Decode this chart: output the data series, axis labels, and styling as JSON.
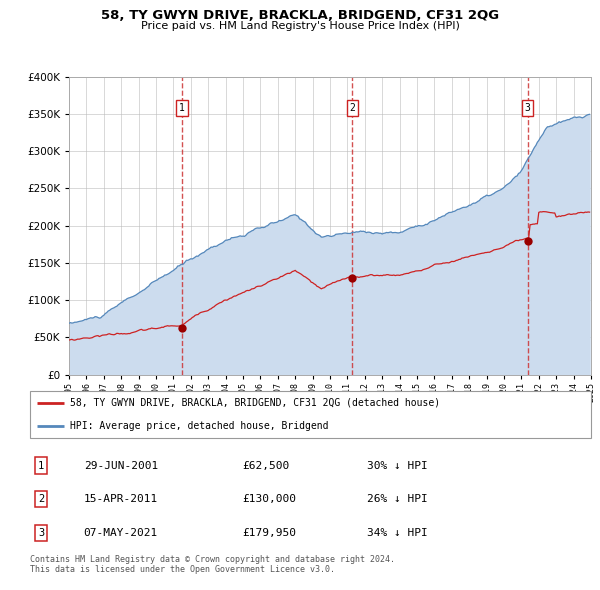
{
  "title": "58, TY GWYN DRIVE, BRACKLA, BRIDGEND, CF31 2QG",
  "subtitle": "Price paid vs. HM Land Registry's House Price Index (HPI)",
  "sale_years": [
    2001.496,
    2011.288,
    2021.353
  ],
  "sale_prices": [
    62500,
    130000,
    179950
  ],
  "sale_labels": [
    "1",
    "2",
    "3"
  ],
  "hpi_color": "#5588bb",
  "hpi_fill_color": "#ccdcee",
  "price_color": "#cc2222",
  "marker_color": "#990000",
  "vline_color": "#cc3333",
  "plot_bg": "#ffffff",
  "grid_color": "#bbbbbb",
  "ylim": [
    0,
    400000
  ],
  "yticks": [
    0,
    50000,
    100000,
    150000,
    200000,
    250000,
    300000,
    350000,
    400000
  ],
  "legend_label_price": "58, TY GWYN DRIVE, BRACKLA, BRIDGEND, CF31 2QG (detached house)",
  "legend_label_hpi": "HPI: Average price, detached house, Bridgend",
  "table_entries": [
    {
      "label": "1",
      "date": "29-JUN-2001",
      "price": "£62,500",
      "pct": "30% ↓ HPI"
    },
    {
      "label": "2",
      "date": "15-APR-2011",
      "price": "£130,000",
      "pct": "26% ↓ HPI"
    },
    {
      "label": "3",
      "date": "07-MAY-2021",
      "price": "£179,950",
      "pct": "34% ↓ HPI"
    }
  ],
  "footer": "Contains HM Land Registry data © Crown copyright and database right 2024.\nThis data is licensed under the Open Government Licence v3.0.",
  "xstart_year": 1995,
  "xend_year": 2025
}
